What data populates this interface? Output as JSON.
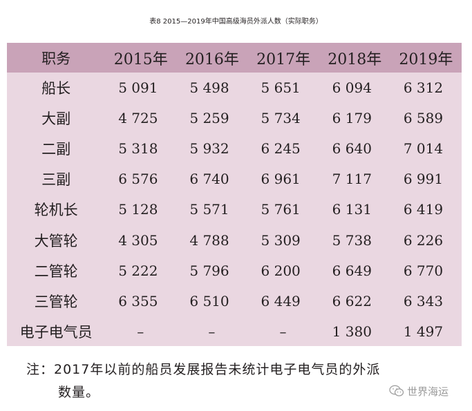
{
  "caption": "表8 2015—2019年中国高级海员外派人数（实际职务）",
  "table": {
    "headers": [
      "职务",
      "2015年",
      "2016年",
      "2017年",
      "2018年",
      "2019年"
    ],
    "rows": [
      {
        "role": "船长",
        "values": [
          "5 091",
          "5 498",
          "5 651",
          "6 094",
          "6 312"
        ]
      },
      {
        "role": "大副",
        "values": [
          "4 725",
          "5 259",
          "5 734",
          "6 179",
          "6 589"
        ]
      },
      {
        "role": "二副",
        "values": [
          "5 318",
          "5 932",
          "6 245",
          "6 640",
          "7 014"
        ]
      },
      {
        "role": "三副",
        "values": [
          "6 576",
          "6 740",
          "6 961",
          "7 117",
          "6 991"
        ]
      },
      {
        "role": "轮机长",
        "values": [
          "5 128",
          "5 571",
          "5 761",
          "6 131",
          "6 419"
        ]
      },
      {
        "role": "大管轮",
        "values": [
          "4 305",
          "4 788",
          "5 309",
          "5 738",
          "6 226"
        ]
      },
      {
        "role": "二管轮",
        "values": [
          "5 222",
          "5 796",
          "6 200",
          "6 649",
          "6 770"
        ]
      },
      {
        "role": "三管轮",
        "values": [
          "6 355",
          "6 510",
          "6 449",
          "6 622",
          "6 343"
        ]
      },
      {
        "role": "电子电气员",
        "values": [
          "–",
          "–",
          "–",
          "1 380",
          "1 497"
        ]
      }
    ]
  },
  "note": {
    "line1": "注：2017年以前的船员发展报告未统计电子电气员的外派",
    "line2": "数量。"
  },
  "watermark": {
    "text": "世界海运",
    "icon": "wechat-icon"
  }
}
